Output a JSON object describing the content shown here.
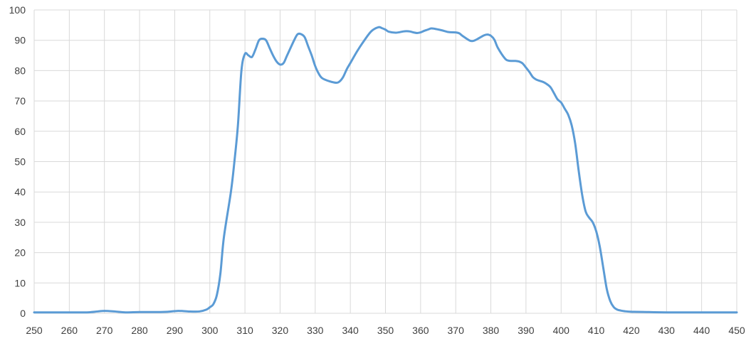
{
  "chart_data": {
    "type": "line",
    "title": "",
    "xlabel": "",
    "ylabel": "",
    "xlim": [
      250,
      450
    ],
    "ylim": [
      0,
      100
    ],
    "xticks": [
      250,
      260,
      270,
      280,
      290,
      300,
      310,
      320,
      330,
      340,
      350,
      360,
      370,
      380,
      390,
      400,
      410,
      420,
      430,
      440,
      450
    ],
    "yticks": [
      0,
      10,
      20,
      30,
      40,
      50,
      60,
      70,
      80,
      90,
      100
    ],
    "grid": true,
    "legend": "none",
    "series": [
      {
        "color": "#5b9bd5",
        "points": [
          [
            250,
            0.3
          ],
          [
            260,
            0.3
          ],
          [
            265,
            0.3
          ],
          [
            268,
            0.6
          ],
          [
            270,
            0.8
          ],
          [
            273,
            0.6
          ],
          [
            276,
            0.3
          ],
          [
            280,
            0.4
          ],
          [
            285,
            0.4
          ],
          [
            288,
            0.5
          ],
          [
            291,
            0.8
          ],
          [
            294,
            0.6
          ],
          [
            297,
            0.6
          ],
          [
            299,
            1.2
          ],
          [
            300,
            2
          ],
          [
            301,
            3
          ],
          [
            302,
            6
          ],
          [
            303,
            13
          ],
          [
            304,
            25
          ],
          [
            306,
            40
          ],
          [
            307,
            50
          ],
          [
            308,
            62
          ],
          [
            309,
            80
          ],
          [
            310,
            85.5
          ],
          [
            311,
            85
          ],
          [
            312,
            84.5
          ],
          [
            313,
            87
          ],
          [
            314,
            90
          ],
          [
            315,
            90.5
          ],
          [
            316,
            90
          ],
          [
            317,
            87.5
          ],
          [
            318,
            85
          ],
          [
            319,
            83
          ],
          [
            320,
            82
          ],
          [
            321,
            82.5
          ],
          [
            322,
            85
          ],
          [
            324,
            90
          ],
          [
            325,
            92
          ],
          [
            326,
            92
          ],
          [
            327,
            91
          ],
          [
            328,
            88
          ],
          [
            329,
            85
          ],
          [
            330,
            81.5
          ],
          [
            331,
            79
          ],
          [
            332,
            77.5
          ],
          [
            334,
            76.5
          ],
          [
            336,
            76
          ],
          [
            337,
            76.5
          ],
          [
            338,
            78
          ],
          [
            339,
            80.5
          ],
          [
            340,
            82.5
          ],
          [
            342,
            86.5
          ],
          [
            344,
            90
          ],
          [
            346,
            93
          ],
          [
            348,
            94.3
          ],
          [
            349,
            94
          ],
          [
            350,
            93.5
          ],
          [
            351,
            92.8
          ],
          [
            353,
            92.5
          ],
          [
            355,
            92.9
          ],
          [
            356,
            93
          ],
          [
            357,
            92.9
          ],
          [
            358,
            92.6
          ],
          [
            359,
            92.4
          ],
          [
            360,
            92.6
          ],
          [
            361,
            93.1
          ],
          [
            362,
            93.5
          ],
          [
            363,
            93.9
          ],
          [
            364,
            93.8
          ],
          [
            366,
            93.3
          ],
          [
            368,
            92.7
          ],
          [
            370,
            92.6
          ],
          [
            371,
            92.3
          ],
          [
            372,
            91.4
          ],
          [
            374,
            89.9
          ],
          [
            375,
            89.8
          ],
          [
            376,
            90.3
          ],
          [
            378,
            91.6
          ],
          [
            379,
            91.9
          ],
          [
            380,
            91.5
          ],
          [
            381,
            90.2
          ],
          [
            382,
            87.5
          ],
          [
            384,
            84
          ],
          [
            385,
            83.3
          ],
          [
            386,
            83.2
          ],
          [
            387,
            83.2
          ],
          [
            388,
            83
          ],
          [
            389,
            82.4
          ],
          [
            390,
            81
          ],
          [
            391,
            79.5
          ],
          [
            392,
            77.8
          ],
          [
            393,
            77
          ],
          [
            394,
            76.6
          ],
          [
            395,
            76.2
          ],
          [
            396,
            75.5
          ],
          [
            397,
            74.5
          ],
          [
            398,
            72.5
          ],
          [
            399,
            70.5
          ],
          [
            400,
            69.5
          ],
          [
            401,
            67.5
          ],
          [
            402,
            65.5
          ],
          [
            403,
            62
          ],
          [
            404,
            56
          ],
          [
            405,
            47
          ],
          [
            406,
            39
          ],
          [
            407,
            33.5
          ],
          [
            408,
            31.5
          ],
          [
            409,
            30
          ],
          [
            410,
            27
          ],
          [
            411,
            22
          ],
          [
            412,
            15
          ],
          [
            413,
            8
          ],
          [
            414,
            4
          ],
          [
            415,
            2
          ],
          [
            416,
            1.2
          ],
          [
            417,
            0.9
          ],
          [
            418,
            0.7
          ],
          [
            420,
            0.5
          ],
          [
            425,
            0.4
          ],
          [
            430,
            0.3
          ],
          [
            440,
            0.3
          ],
          [
            450,
            0.3
          ]
        ]
      }
    ]
  }
}
